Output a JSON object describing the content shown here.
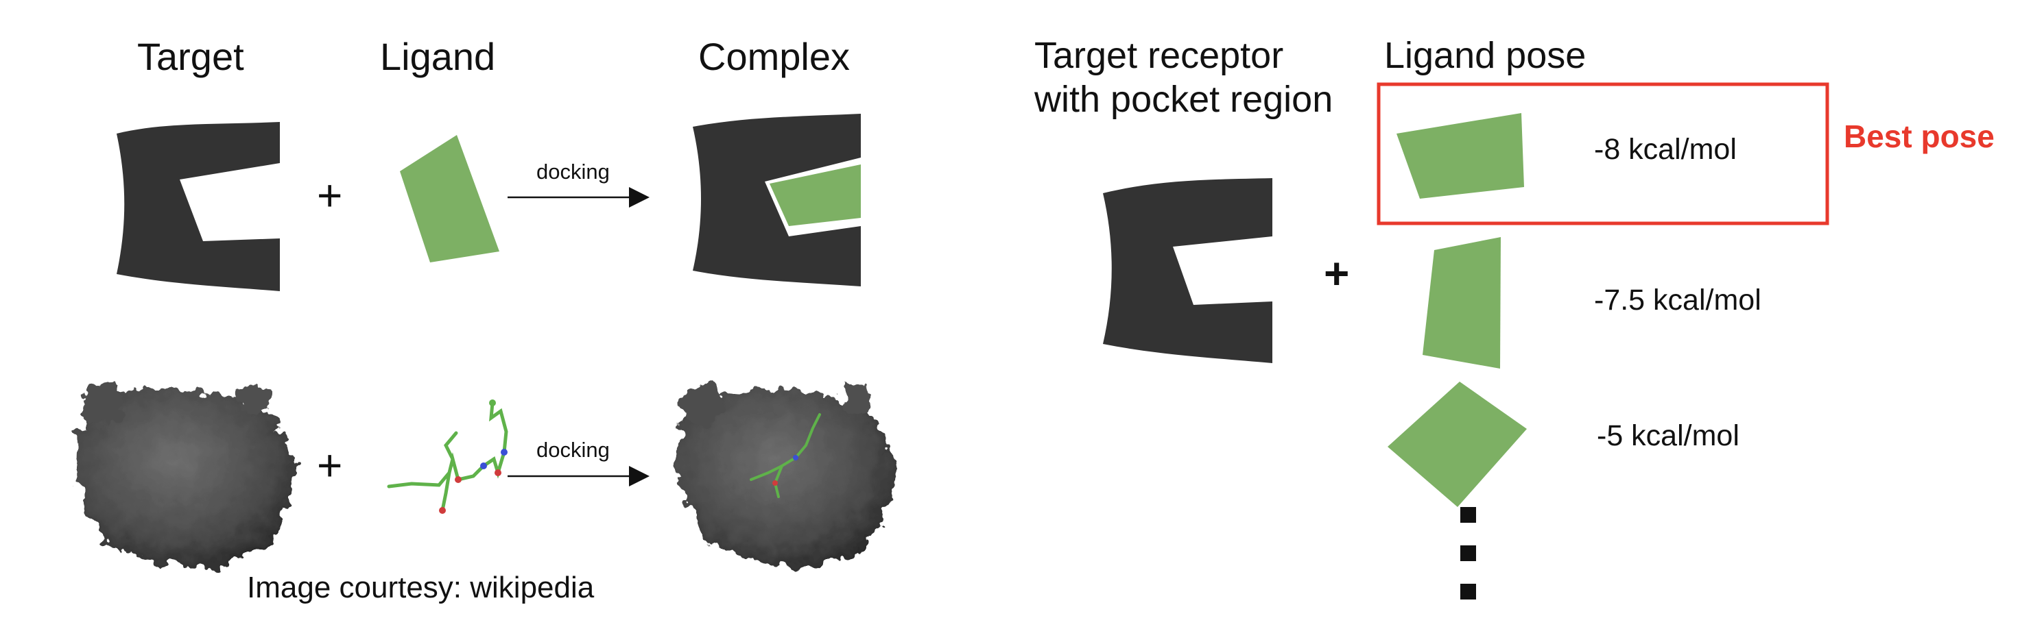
{
  "left": {
    "headers": {
      "target": "Target",
      "ligand": "Ligand",
      "complex": "Complex"
    },
    "plus_symbol": "+",
    "docking_label": "docking",
    "caption": "Image courtesy: wikipedia"
  },
  "right": {
    "receptor_label_line1": "Target receptor",
    "receptor_label_line2": "with pocket region",
    "ligand_pose_header": "Ligand pose",
    "plus_symbol": "+",
    "best_pose_label": "Best pose",
    "poses": [
      {
        "energy": "-8 kcal/mol"
      },
      {
        "energy": "-7.5 kcal/mol"
      },
      {
        "energy": "-5 kcal/mol"
      }
    ]
  },
  "colors": {
    "receptor": "#333333",
    "ligand": "#7db064",
    "highlight": "#e8392c",
    "protein": "#555555"
  }
}
